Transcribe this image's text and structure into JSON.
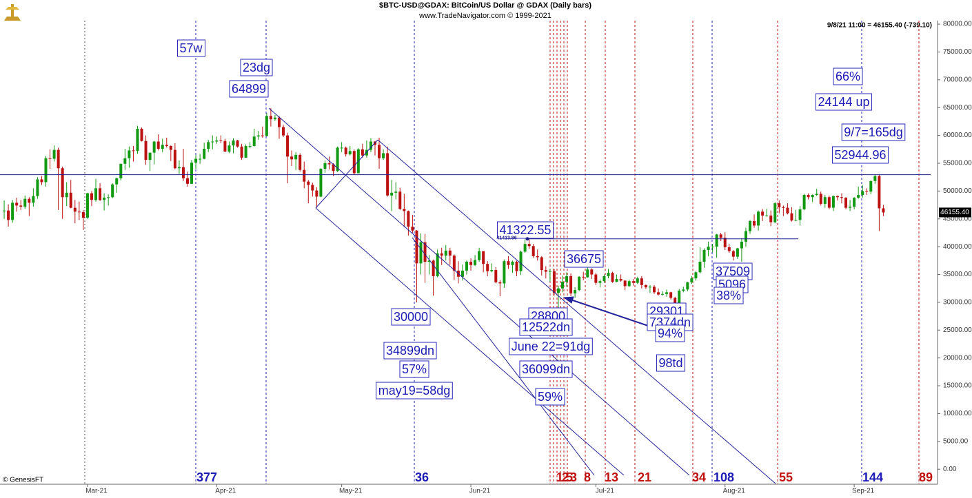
{
  "chart_data": {
    "type": "candlestick",
    "title": "$BTC-USD@GDAX:  BitCoin/US Dollar @ GDAX  (Daily bars)",
    "subtitle": "www.TradeNavigator.com © 1999-2021",
    "quote": "9/8/21 11:00 = 46155.40 (-739.10)",
    "source": "© GenesisFT",
    "up_color": "#119911",
    "down_color": "#bb1111",
    "grid": false,
    "xlim": [
      -21,
      204
    ],
    "ylim": [
      -2700,
      81000
    ],
    "xticks": [
      {
        "value": 0,
        "label": "Mar-21"
      },
      {
        "value": 31,
        "label": "Apr-21"
      },
      {
        "value": 61,
        "label": "May-21"
      },
      {
        "value": 92,
        "label": "Jun-21"
      },
      {
        "value": 122,
        "label": "Jul-21"
      },
      {
        "value": 153,
        "label": "Aug-21"
      },
      {
        "value": 184,
        "label": "Sep-21"
      }
    ],
    "yticks": [
      {
        "value": 0,
        "label": "0.00"
      },
      {
        "value": 5000,
        "label": "5000.00"
      },
      {
        "value": 10000,
        "label": "10000.00"
      },
      {
        "value": 15000,
        "label": "15000.00"
      },
      {
        "value": 20000,
        "label": "20000.00"
      },
      {
        "value": 25000,
        "label": "25000.00"
      },
      {
        "value": 30000,
        "label": "30000.00"
      },
      {
        "value": 35000,
        "label": "35000.00"
      },
      {
        "value": 40000,
        "label": "40000.00"
      },
      {
        "value": 45000,
        "label": "45000.00"
      },
      {
        "value": 50000,
        "label": "50000.00"
      },
      {
        "value": 55000,
        "label": "55000.00"
      },
      {
        "value": 60000,
        "label": "60000.00"
      },
      {
        "value": 65000,
        "label": "65000.00"
      },
      {
        "value": 70000,
        "label": "70000.00"
      },
      {
        "value": 75000,
        "label": "75000.00"
      },
      {
        "value": 80000,
        "label": "80000.00"
      }
    ],
    "last_price": {
      "value": 46155.4,
      "label": "46155.40"
    },
    "levels": [
      52944.96,
      41413.86
    ],
    "x": [
      -20,
      -19,
      -18,
      -17,
      -16,
      -15,
      -14,
      -13,
      -12,
      -11,
      -10,
      -9,
      -8,
      -7,
      -6,
      -5,
      -4,
      -3,
      -2,
      -1,
      0,
      1,
      2,
      3,
      4,
      5,
      6,
      7,
      8,
      9,
      10,
      11,
      12,
      13,
      14,
      15,
      16,
      17,
      18,
      19,
      20,
      21,
      22,
      23,
      24,
      25,
      26,
      27,
      28,
      29,
      30,
      31,
      32,
      33,
      34,
      35,
      36,
      37,
      38,
      39,
      40,
      41,
      42,
      43,
      44,
      45,
      46,
      47,
      48,
      49,
      50,
      51,
      52,
      53,
      54,
      55,
      56,
      57,
      58,
      59,
      60,
      61,
      62,
      63,
      64,
      65,
      66,
      67,
      68,
      69,
      70,
      71,
      72,
      73,
      74,
      75,
      76,
      77,
      78,
      79,
      80,
      81,
      82,
      83,
      84,
      85,
      86,
      87,
      88,
      89,
      90,
      91,
      92,
      93,
      94,
      95,
      96,
      97,
      98,
      99,
      100,
      101,
      102,
      103,
      104,
      105,
      106,
      107,
      108,
      109,
      110,
      111,
      112,
      113,
      114,
      115,
      116,
      117,
      118,
      119,
      120,
      121,
      122,
      123,
      124,
      125,
      126,
      127,
      128,
      129,
      130,
      131,
      132,
      133,
      134,
      135,
      136,
      137,
      138,
      139,
      140,
      141,
      142,
      143,
      144,
      145,
      146,
      147,
      148,
      149,
      150,
      151,
      152,
      153,
      154,
      155,
      156,
      157,
      158,
      159,
      160,
      161,
      162,
      163,
      164,
      165,
      166,
      167,
      168,
      169,
      170,
      171,
      172,
      173,
      174,
      175,
      176,
      177,
      178,
      179,
      180,
      181,
      182,
      183,
      184,
      185,
      186,
      187,
      188,
      189,
      190,
      191
    ],
    "open": [
      46400,
      46500,
      44800,
      47900,
      47400,
      47200,
      48600,
      47900,
      49100,
      52100,
      51600,
      55900,
      55800,
      57400,
      54100,
      48900,
      49700,
      47000,
      46300,
      46200,
      45200,
      49600,
      48400,
      50500,
      48400,
      48800,
      48900,
      51200,
      52300,
      54900,
      55900,
      57300,
      57200,
      61200,
      59000,
      55600,
      56900,
      58900,
      57600,
      58300,
      58100,
      57400,
      54100,
      54300,
      52300,
      51300,
      55100,
      55800,
      55800,
      57600,
      58800,
      58900,
      59100,
      59000,
      57100,
      58200,
      59100,
      58000,
      56000,
      58100,
      58100,
      59800,
      60000,
      59900,
      63500,
      62900,
      63200,
      61500,
      60000,
      56200,
      55700,
      56500,
      53800,
      51700,
      51100,
      50100,
      49000,
      54000,
      55000,
      54800,
      53600,
      57800,
      57800,
      56600,
      57200,
      53200,
      57500,
      56400,
      57400,
      58900,
      58300,
      55900,
      56800,
      49200,
      49700,
      49900,
      46800,
      46400,
      43600,
      42900,
      37000,
      40800,
      37300,
      37500,
      34700,
      38800,
      38400,
      39300,
      38400,
      35700,
      34600,
      35700,
      37300,
      36700,
      37600,
      39200,
      36900,
      35600,
      35800,
      33600,
      33400,
      37400,
      36700,
      37300,
      35600,
      39100,
      40500,
      40100,
      38300,
      38100,
      35800,
      35500,
      35600,
      31700,
      32500,
      33700,
      34700,
      31600,
      32200,
      34600,
      34500,
      35900,
      35000,
      33500,
      33800,
      34700,
      35300,
      33700,
      34200,
      33900,
      32900,
      33800,
      33500,
      34300,
      33100,
      32700,
      32800,
      31800,
      31400,
      31500,
      31800,
      30800,
      29800,
      32100,
      32300,
      33600,
      34300,
      35400,
      37300,
      39400,
      40000,
      40000,
      42200,
      41600,
      39900,
      39200,
      38200,
      39700,
      40900,
      42800,
      44600,
      43800,
      46300,
      45600,
      45600,
      44400,
      47800,
      47100,
      47000,
      46000,
      44700,
      44800,
      46700,
      49300,
      48900,
      49300,
      49500,
      47700,
      48900,
      47000,
      49100,
      48900,
      48800,
      47000,
      47200,
      48800,
      49300,
      50000,
      49900,
      51800,
      52700,
      46900
    ],
    "high": [
      48300,
      47600,
      48400,
      48800,
      48400,
      49200,
      48900,
      50500,
      52500,
      52700,
      56300,
      57500,
      58200,
      57800,
      54400,
      51600,
      52000,
      48400,
      48100,
      46600,
      49700,
      50000,
      52200,
      51400,
      49600,
      49400,
      51400,
      52400,
      54900,
      57600,
      58000,
      58100,
      61700,
      61400,
      60000,
      56900,
      59000,
      60200,
      59400,
      59600,
      58200,
      58600,
      55500,
      57600,
      53500,
      55600,
      56500,
      56700,
      58700,
      59200,
      60000,
      59800,
      60000,
      59400,
      58900,
      59500,
      59200,
      58500,
      58400,
      58800,
      61200,
      60800,
      61600,
      64000,
      64899,
      63700,
      63500,
      61900,
      60500,
      57300,
      57000,
      56800,
      55300,
      52000,
      51500,
      50700,
      54100,
      55500,
      56200,
      55000,
      58000,
      58800,
      58000,
      58100,
      57500,
      57700,
      58500,
      59100,
      59500,
      59000,
      59600,
      57500,
      58000,
      52000,
      51600,
      50600,
      49500,
      46500,
      45700,
      43000,
      42400,
      42300,
      38500,
      37700,
      39500,
      39800,
      40300,
      39800,
      38600,
      37400,
      36800,
      37500,
      37900,
      38500,
      39800,
      39200,
      37400,
      37000,
      36300,
      34000,
      37700,
      38300,
      37500,
      37500,
      39300,
      41322.55,
      41300,
      40500,
      39500,
      38300,
      36500,
      36000,
      36000,
      33000,
      34800,
      35400,
      35200,
      32700,
      34700,
      35500,
      36675,
      36100,
      35300,
      34100,
      35000,
      36000,
      35500,
      35000,
      35000,
      34000,
      34100,
      34200,
      34600,
      34700,
      33200,
      33100,
      33100,
      32500,
      32000,
      32300,
      31900,
      31000,
      32400,
      32800,
      33700,
      34700,
      35600,
      39900,
      39700,
      40900,
      40500,
      42300,
      42500,
      42600,
      40500,
      39400,
      39800,
      41500,
      43400,
      44800,
      45800,
      46500,
      46800,
      46800,
      46500,
      48000,
      48300,
      47400,
      47800,
      47100,
      46600,
      47300,
      49500,
      49600,
      49400,
      50400,
      49900,
      49300,
      49200,
      49200,
      49200,
      49600,
      48900,
      48400,
      48900,
      50800,
      51100,
      50500,
      51900,
      52900,
      52944.96,
      47500
    ],
    "low": [
      45000,
      43600,
      44300,
      46300,
      46600,
      46800,
      45500,
      47200,
      48600,
      51100,
      50800,
      54000,
      55300,
      46600,
      45000,
      47300,
      46900,
      44200,
      44800,
      43000,
      45000,
      47300,
      48100,
      48200,
      46500,
      47400,
      48700,
      49700,
      51900,
      53800,
      54200,
      55300,
      56700,
      58900,
      54700,
      53600,
      54800,
      57300,
      57000,
      57800,
      55400,
      53900,
      53100,
      51800,
      50800,
      51300,
      54000,
      54900,
      55700,
      57000,
      57500,
      58500,
      58600,
      57000,
      56800,
      56800,
      57800,
      55600,
      56000,
      57700,
      58000,
      59200,
      59600,
      59800,
      61600,
      62600,
      59400,
      59700,
      51400,
      54500,
      53800,
      53500,
      50500,
      47800,
      49000,
      47000,
      48900,
      53300,
      53900,
      52700,
      53400,
      57000,
      56200,
      56400,
      53000,
      53200,
      56000,
      56000,
      57000,
      56400,
      54000,
      55600,
      49000,
      46400,
      48500,
      46600,
      43500,
      42000,
      42500,
      30000,
      35000,
      33500,
      35000,
      31200,
      34500,
      36700,
      37500,
      36700,
      34000,
      33400,
      33900,
      35000,
      35700,
      36500,
      37300,
      35400,
      34700,
      35400,
      33400,
      31100,
      32600,
      36000,
      35300,
      34700,
      34900,
      38900,
      39600,
      38000,
      37500,
      34800,
      34300,
      33700,
      31200,
      28800,
      31800,
      32800,
      31100,
      30800,
      32000,
      34000,
      34400,
      34200,
      33100,
      32700,
      33500,
      34300,
      33500,
      33600,
      33700,
      32200,
      32800,
      33000,
      33300,
      32500,
      32400,
      31700,
      31500,
      31200,
      31200,
      31000,
      30500,
      29301,
      29600,
      31800,
      32000,
      33300,
      33900,
      35200,
      36200,
      38300,
      39000,
      38000,
      41000,
      39400,
      38900,
      37509,
      37800,
      37300,
      40000,
      42300,
      43400,
      42900,
      44600,
      45400,
      43700,
      44200,
      46000,
      45500,
      45800,
      44500,
      44600,
      43800,
      46600,
      48500,
      48000,
      49100,
      47400,
      47000,
      46700,
      46400,
      48300,
      47800,
      46700,
      46400,
      46700,
      48600,
      48800,
      49300,
      49400,
      51300,
      42800,
      45500
    ],
    "close": [
      46500,
      44800,
      47900,
      47400,
      47200,
      48600,
      47900,
      49100,
      52100,
      51600,
      55900,
      55800,
      57400,
      54100,
      48900,
      49700,
      47000,
      46300,
      46200,
      45200,
      49600,
      48400,
      50500,
      48400,
      48800,
      48900,
      51200,
      52300,
      54900,
      55900,
      57300,
      57200,
      61200,
      59000,
      55600,
      56900,
      58900,
      57600,
      58300,
      58100,
      57400,
      54100,
      54300,
      52300,
      51300,
      55100,
      55800,
      55800,
      57600,
      58800,
      58900,
      59100,
      59000,
      57100,
      58200,
      59100,
      58000,
      56000,
      58100,
      58100,
      59800,
      60000,
      59900,
      63500,
      62900,
      63200,
      61500,
      60000,
      56200,
      55700,
      56500,
      53800,
      51700,
      51100,
      50100,
      49000,
      54000,
      55000,
      54800,
      53600,
      57800,
      57800,
      56600,
      57200,
      53200,
      57500,
      56400,
      57400,
      58900,
      58300,
      55900,
      56800,
      49200,
      49700,
      49900,
      46800,
      46400,
      43600,
      42900,
      37000,
      40800,
      37300,
      37500,
      34700,
      38800,
      38400,
      39300,
      38400,
      35700,
      34600,
      35700,
      37300,
      36700,
      37600,
      39200,
      36900,
      35600,
      35800,
      33600,
      33400,
      37400,
      36700,
      37300,
      35600,
      39100,
      40500,
      40100,
      38300,
      38100,
      35800,
      35500,
      35600,
      31700,
      32500,
      33700,
      34700,
      31600,
      32200,
      34600,
      34500,
      35900,
      35000,
      33500,
      33800,
      34700,
      35300,
      33700,
      34200,
      33900,
      32900,
      33800,
      33500,
      34300,
      33100,
      32700,
      32800,
      31800,
      31400,
      31500,
      31800,
      30800,
      29800,
      32100,
      32300,
      33600,
      34300,
      35400,
      37300,
      39400,
      40000,
      40000,
      42200,
      41600,
      39900,
      39200,
      38200,
      39700,
      40900,
      42800,
      44600,
      43800,
      46300,
      45600,
      45600,
      44400,
      47800,
      47100,
      47000,
      46000,
      44700,
      44800,
      46700,
      49300,
      48900,
      49300,
      49500,
      47700,
      48900,
      47000,
      49100,
      48900,
      48800,
      47000,
      47200,
      48800,
      49300,
      50000,
      49900,
      51800,
      52700,
      46900,
      46155.4
    ],
    "annotations": [
      "57w",
      "23dg",
      "64899",
      "30000",
      "34899dn",
      "57%",
      "may19=58dg",
      "41322.55",
      "36675",
      "28800",
      "12522dn",
      "June 22=91dg",
      "36099dn",
      "59%",
      "29301",
      "7374dn",
      "94%",
      "98td",
      "37509",
      "5096",
      "38%",
      "66%",
      "24144 up",
      "9/7=165dg",
      "52944.96"
    ],
    "cycle_labels": [
      {
        "text": "377",
        "color": "#1c1cb4"
      },
      {
        "text": "36",
        "color": "#1c1cb4"
      },
      {
        "text": "1",
        "color": "#c01010"
      },
      {
        "text": "2",
        "color": "#c01010"
      },
      {
        "text": "5",
        "color": "#c01010"
      },
      {
        "text": "3",
        "color": "#c01010"
      },
      {
        "text": "8",
        "color": "#c01010"
      },
      {
        "text": "13",
        "color": "#c01010"
      },
      {
        "text": "21",
        "color": "#c01010"
      },
      {
        "text": "34",
        "color": "#c01010"
      },
      {
        "text": "108",
        "color": "#1c1cb4"
      },
      {
        "text": "55",
        "color": "#c01010"
      },
      {
        "text": "144",
        "color": "#1c1cb4"
      },
      {
        "text": "89",
        "color": "#c01010"
      }
    ]
  }
}
